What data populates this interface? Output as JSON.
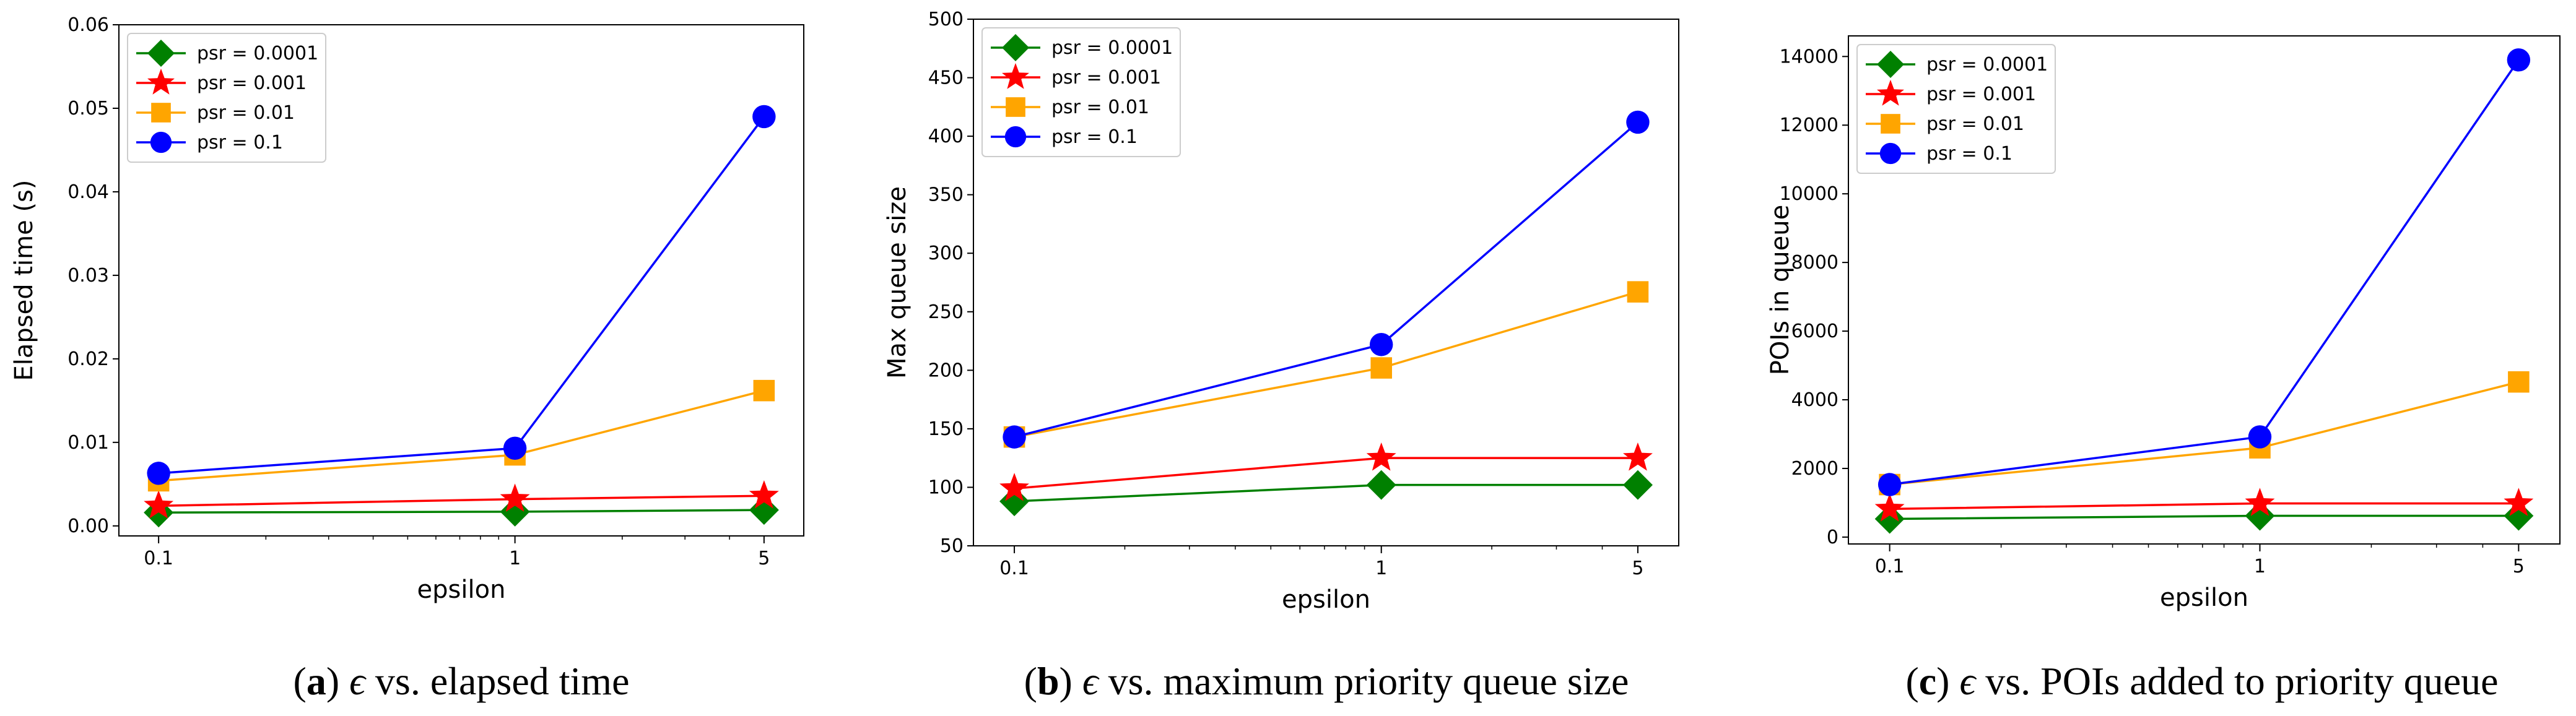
{
  "colors": {
    "psr_0.0001": "#008000",
    "psr_0.001": "#ff0000",
    "psr_0.01": "#ffa500",
    "psr_0.1": "#0000ff"
  },
  "chart_data": [
    {
      "type": "line",
      "id": "a",
      "caption": {
        "letter": "a",
        "symbol": "ϵ",
        "text": " vs. elapsed time"
      },
      "xlabel": "epsilon",
      "ylabel": "Elapsed time (s)",
      "xscale": "log",
      "x": [
        0.1,
        1,
        5
      ],
      "xticklabels": [
        "0.1",
        "1",
        "5"
      ],
      "ylim": [
        -0.0012,
        0.06
      ],
      "yticks": [
        0.0,
        0.01,
        0.02,
        0.03,
        0.04,
        0.05,
        0.06
      ],
      "yticklabels": [
        "0.00",
        "0.01",
        "0.02",
        "0.03",
        "0.04",
        "0.05",
        "0.06"
      ],
      "legend_position": "top-left",
      "series": [
        {
          "name": "psr = 0.0001",
          "marker": "diamond",
          "color_key": "psr_0.0001",
          "values": [
            0.0016,
            0.0017,
            0.0019
          ]
        },
        {
          "name": "psr = 0.001",
          "marker": "star",
          "color_key": "psr_0.001",
          "values": [
            0.0024,
            0.0032,
            0.0036
          ]
        },
        {
          "name": "psr = 0.01",
          "marker": "square",
          "color_key": "psr_0.01",
          "values": [
            0.0054,
            0.0085,
            0.0162
          ]
        },
        {
          "name": "psr = 0.1",
          "marker": "circle",
          "color_key": "psr_0.1",
          "values": [
            0.0063,
            0.0093,
            0.049
          ]
        }
      ]
    },
    {
      "type": "line",
      "id": "b",
      "caption": {
        "letter": "b",
        "symbol": "ϵ",
        "text": " vs. maximum priority queue size"
      },
      "xlabel": "epsilon",
      "ylabel": "Max queue size",
      "xscale": "log",
      "x": [
        0.1,
        1,
        5
      ],
      "xticklabels": [
        "0.1",
        "1",
        "5"
      ],
      "ylim": [
        50,
        500
      ],
      "yticks": [
        50,
        100,
        150,
        200,
        250,
        300,
        350,
        400,
        450,
        500
      ],
      "yticklabels": [
        "50",
        "100",
        "150",
        "200",
        "250",
        "300",
        "350",
        "400",
        "450",
        "500"
      ],
      "legend_position": "top-left",
      "series": [
        {
          "name": "psr = 0.0001",
          "marker": "diamond",
          "color_key": "psr_0.0001",
          "values": [
            88,
            102,
            102
          ]
        },
        {
          "name": "psr = 0.001",
          "marker": "star",
          "color_key": "psr_0.001",
          "values": [
            99,
            125,
            125
          ]
        },
        {
          "name": "psr = 0.01",
          "marker": "square",
          "color_key": "psr_0.01",
          "values": [
            143,
            202,
            267
          ]
        },
        {
          "name": "psr = 0.1",
          "marker": "circle",
          "color_key": "psr_0.1",
          "values": [
            143,
            222,
            412
          ]
        }
      ]
    },
    {
      "type": "line",
      "id": "c",
      "caption": {
        "letter": "c",
        "symbol": "ϵ",
        "text": " vs. POIs added to priority queue"
      },
      "xlabel": "epsilon",
      "ylabel": "POIs in queue",
      "xscale": "log",
      "x": [
        0.1,
        1,
        5
      ],
      "xticklabels": [
        "0.1",
        "1",
        "5"
      ],
      "ylim": [
        -200,
        14600
      ],
      "yticks": [
        0,
        2000,
        4000,
        6000,
        8000,
        10000,
        12000,
        14000
      ],
      "yticklabels": [
        "0",
        "2000",
        "4000",
        "6000",
        "8000",
        "10000",
        "12000",
        "14000"
      ],
      "legend_position": "top-left",
      "series": [
        {
          "name": "psr = 0.0001",
          "marker": "diamond",
          "color_key": "psr_0.0001",
          "values": [
            530,
            620,
            620
          ]
        },
        {
          "name": "psr = 0.001",
          "marker": "star",
          "color_key": "psr_0.001",
          "values": [
            820,
            980,
            980
          ]
        },
        {
          "name": "psr = 0.01",
          "marker": "square",
          "color_key": "psr_0.01",
          "values": [
            1530,
            2600,
            4520
          ]
        },
        {
          "name": "psr = 0.1",
          "marker": "circle",
          "color_key": "psr_0.1",
          "values": [
            1530,
            2920,
            13900
          ]
        }
      ]
    }
  ]
}
